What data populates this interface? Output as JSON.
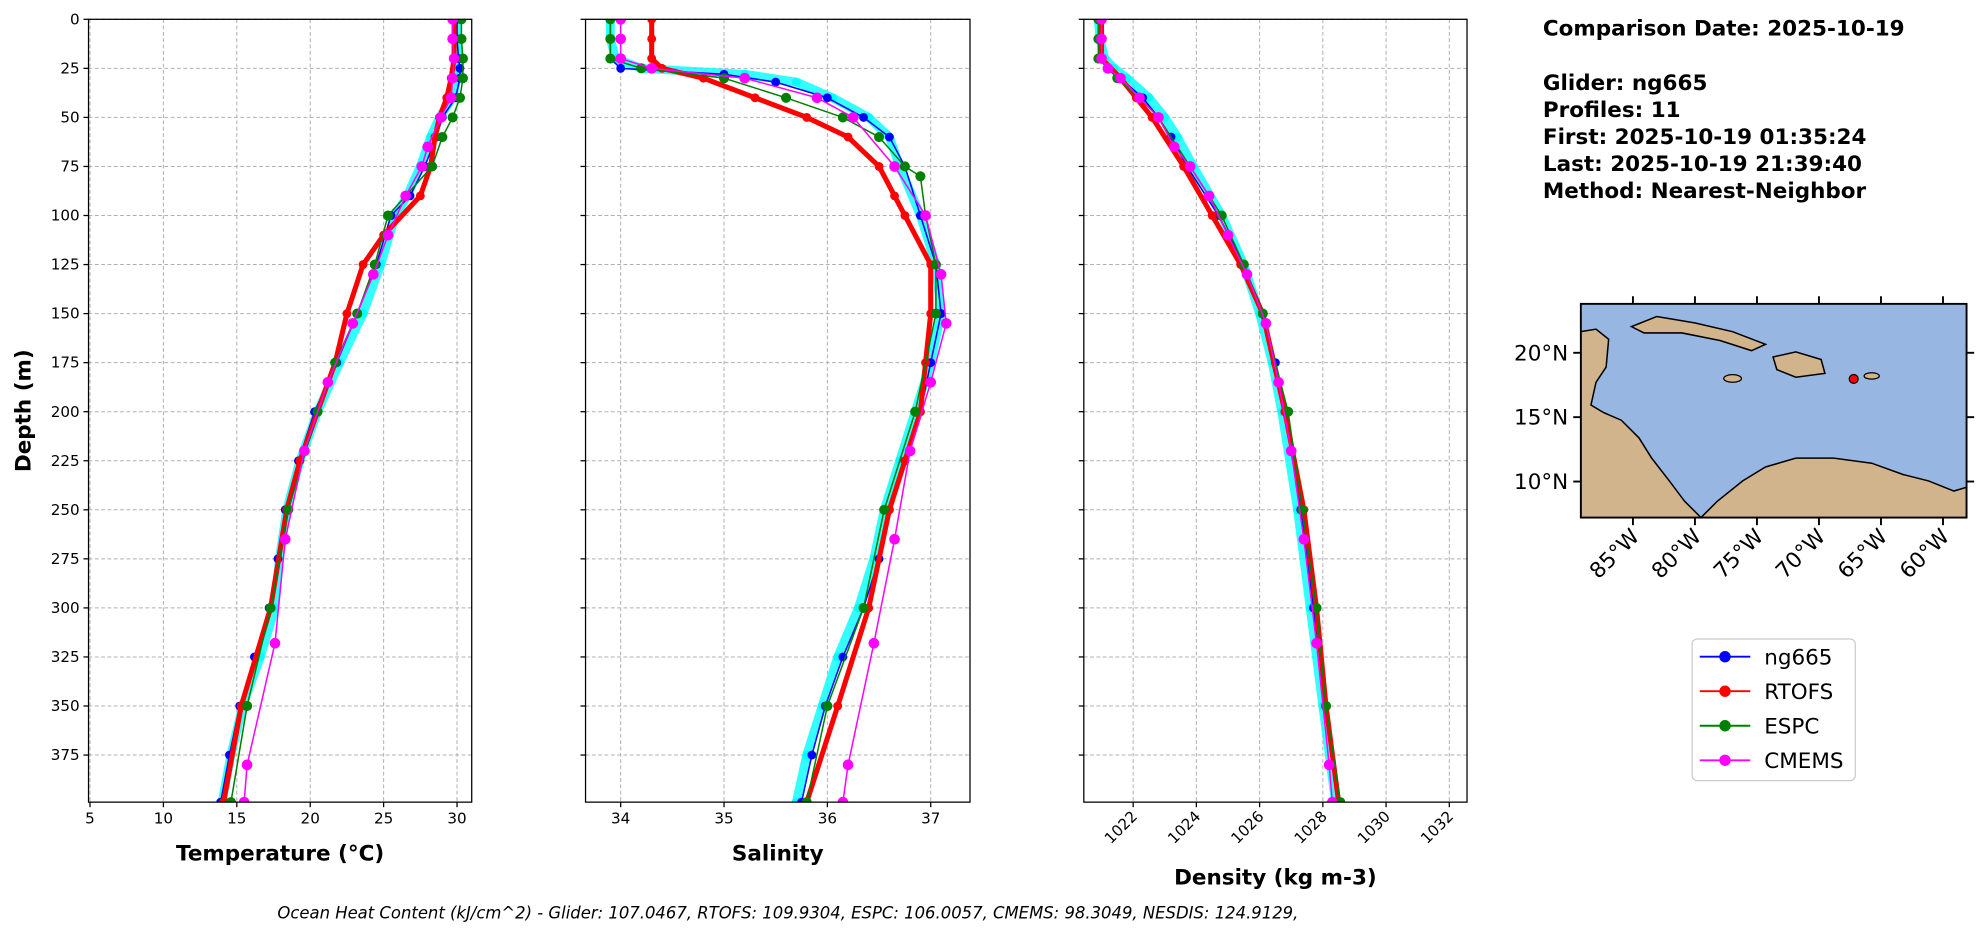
{
  "chart_data": [
    {
      "type": "line",
      "xlabel": "Temperature (°C)",
      "ylabel": "Depth (m)",
      "xlim": [
        4.9,
        31.0
      ],
      "xticks": [
        5,
        10,
        15,
        20,
        25,
        30
      ],
      "ylim": [
        0,
        399
      ],
      "yticks": [
        0,
        25,
        50,
        75,
        100,
        125,
        150,
        175,
        200,
        225,
        250,
        275,
        300,
        325,
        350,
        375
      ],
      "y_inverted": true,
      "grid": true,
      "ytick_labels": true,
      "xtick_rotation": 0,
      "series": [
        {
          "color": "#00ffff",
          "y": [
            0,
            10,
            20,
            25,
            30,
            40,
            50,
            60,
            75,
            90,
            100,
            125,
            150,
            175,
            200,
            225,
            250,
            275,
            300,
            325,
            350,
            375,
            399
          ],
          "x": [
            30.0,
            30.0,
            30.1,
            30.1,
            30.0,
            29.7,
            28.8,
            28.2,
            27.5,
            26.6,
            25.8,
            24.8,
            23.6,
            22.0,
            20.5,
            19.3,
            18.4,
            17.9,
            17.6,
            16.6,
            15.4,
            14.6,
            14.0
          ]
        },
        {
          "name": "ng665",
          "color": "#0000ff",
          "y": [
            0,
            10,
            20,
            25,
            30,
            40,
            50,
            60,
            75,
            90,
            100,
            125,
            150,
            175,
            200,
            225,
            250,
            275,
            300,
            325,
            350,
            375,
            399
          ],
          "x": [
            30.0,
            30.0,
            30.1,
            30.2,
            30.2,
            29.9,
            29.0,
            28.6,
            27.8,
            26.8,
            25.5,
            24.5,
            23.2,
            21.8,
            20.3,
            19.2,
            18.3,
            17.8,
            17.2,
            16.2,
            15.2,
            14.5,
            13.9
          ]
        },
        {
          "name": "RTOFS",
          "color": "#ff0000",
          "y": [
            0,
            10,
            20,
            30,
            40,
            50,
            60,
            75,
            90,
            110,
            125,
            150,
            175,
            200,
            225,
            250,
            300,
            350,
            399
          ],
          "x": [
            29.8,
            29.8,
            29.8,
            29.6,
            29.3,
            28.8,
            28.5,
            28.2,
            27.5,
            25.0,
            23.6,
            22.5,
            21.7,
            20.5,
            19.3,
            18.4,
            17.3,
            15.3,
            14.1
          ]
        },
        {
          "name": "ESPC",
          "color": "#008000",
          "y": [
            0,
            10,
            20,
            30,
            40,
            50,
            60,
            75,
            90,
            100,
            125,
            150,
            175,
            200,
            250,
            300,
            350,
            399
          ],
          "x": [
            30.3,
            30.3,
            30.4,
            30.4,
            30.2,
            29.7,
            29.0,
            28.3,
            26.5,
            25.3,
            24.4,
            23.2,
            21.7,
            20.5,
            18.5,
            17.3,
            15.7,
            14.6
          ]
        },
        {
          "name": "CMEMS",
          "color": "#ff00ff",
          "y": [
            0,
            10,
            20,
            30,
            40,
            50,
            65,
            75,
            90,
            110,
            130,
            155,
            185,
            220,
            265,
            318,
            380,
            399
          ],
          "x": [
            29.7,
            29.7,
            29.8,
            29.7,
            29.6,
            28.9,
            28.0,
            27.6,
            26.5,
            25.3,
            24.3,
            22.9,
            21.2,
            19.6,
            18.3,
            17.6,
            15.7,
            15.5
          ]
        }
      ]
    },
    {
      "type": "line",
      "xlabel": "Salinity",
      "xlim": [
        33.66,
        37.38
      ],
      "xticks": [
        34,
        35,
        36,
        37
      ],
      "ylim": [
        0,
        399
      ],
      "yticks": [
        0,
        25,
        50,
        75,
        100,
        125,
        150,
        175,
        200,
        225,
        250,
        275,
        300,
        325,
        350,
        375
      ],
      "y_inverted": true,
      "grid": true,
      "ytick_labels": false,
      "xtick_rotation": 0,
      "series": [
        {
          "color": "#00ffff",
          "y": [
            0,
            10,
            20,
            25,
            28,
            32,
            40,
            50,
            60,
            75,
            100,
            125,
            150,
            175,
            200,
            225,
            250,
            275,
            300,
            325,
            350,
            375,
            399
          ],
          "x": [
            33.9,
            33.9,
            33.95,
            34.2,
            35.2,
            35.7,
            36.05,
            36.4,
            36.6,
            36.7,
            36.9,
            37.05,
            37.1,
            37.0,
            36.85,
            36.7,
            36.55,
            36.45,
            36.3,
            36.1,
            35.95,
            35.8,
            35.7
          ]
        },
        {
          "name": "ng665",
          "color": "#0000ff",
          "y": [
            0,
            10,
            20,
            25,
            28,
            32,
            40,
            50,
            60,
            75,
            100,
            125,
            150,
            175,
            200,
            225,
            250,
            275,
            300,
            325,
            350,
            375,
            399
          ],
          "x": [
            33.9,
            33.9,
            33.9,
            34.0,
            35.0,
            35.5,
            36.0,
            36.35,
            36.6,
            36.75,
            36.9,
            37.05,
            37.1,
            37.0,
            36.9,
            36.75,
            36.6,
            36.5,
            36.35,
            36.15,
            35.98,
            35.85,
            35.75
          ]
        },
        {
          "name": "RTOFS",
          "color": "#ff0000",
          "y": [
            0,
            10,
            20,
            25,
            30,
            40,
            50,
            60,
            75,
            90,
            100,
            125,
            150,
            175,
            200,
            225,
            250,
            300,
            350,
            399
          ],
          "x": [
            34.3,
            34.3,
            34.3,
            34.4,
            34.8,
            35.3,
            35.8,
            36.2,
            36.5,
            36.65,
            36.75,
            37.0,
            37.0,
            36.95,
            36.9,
            36.75,
            36.6,
            36.4,
            36.1,
            35.8
          ]
        },
        {
          "name": "ESPC",
          "color": "#008000",
          "y": [
            0,
            10,
            20,
            25,
            30,
            40,
            50,
            60,
            75,
            80,
            100,
            125,
            150,
            200,
            250,
            300,
            350,
            399
          ],
          "x": [
            33.9,
            33.9,
            33.9,
            34.2,
            35.0,
            35.6,
            36.15,
            36.5,
            36.75,
            36.9,
            36.95,
            37.05,
            37.05,
            36.85,
            36.55,
            36.35,
            36.0,
            35.8
          ]
        },
        {
          "name": "CMEMS",
          "color": "#ff00ff",
          "y": [
            0,
            10,
            20,
            25,
            30,
            40,
            50,
            75,
            100,
            130,
            155,
            185,
            220,
            265,
            318,
            380,
            399
          ],
          "x": [
            34.0,
            34.0,
            34.0,
            34.3,
            35.2,
            35.9,
            36.25,
            36.65,
            36.95,
            37.1,
            37.15,
            37.0,
            36.8,
            36.65,
            36.45,
            36.2,
            36.15
          ]
        }
      ]
    },
    {
      "type": "line",
      "xlabel": "Density (kg m-3)",
      "xlim": [
        1020.44,
        1032.56
      ],
      "xticks": [
        1022,
        1024,
        1026,
        1028,
        1030,
        1032
      ],
      "ylim": [
        0,
        399
      ],
      "yticks": [
        0,
        25,
        50,
        75,
        100,
        125,
        150,
        175,
        200,
        225,
        250,
        275,
        300,
        325,
        350,
        375
      ],
      "y_inverted": true,
      "grid": true,
      "ytick_labels": false,
      "xtick_rotation": 45,
      "series": [
        {
          "color": "#00ffff",
          "y": [
            0,
            10,
            20,
            25,
            30,
            40,
            50,
            60,
            75,
            100,
            125,
            150,
            175,
            200,
            250,
            300,
            350,
            399
          ],
          "x": [
            1020.9,
            1020.95,
            1021.1,
            1021.4,
            1021.8,
            1022.5,
            1023.0,
            1023.4,
            1023.9,
            1024.8,
            1025.5,
            1026.0,
            1026.4,
            1026.7,
            1027.2,
            1027.6,
            1028.0,
            1028.4
          ]
        },
        {
          "name": "ng665",
          "color": "#0000ff",
          "y": [
            0,
            10,
            20,
            25,
            30,
            40,
            50,
            60,
            75,
            100,
            125,
            150,
            175,
            200,
            250,
            300,
            350,
            399
          ],
          "x": [
            1020.9,
            1020.9,
            1021.0,
            1021.2,
            1021.6,
            1022.3,
            1022.8,
            1023.2,
            1023.7,
            1024.7,
            1025.5,
            1026.1,
            1026.5,
            1026.8,
            1027.3,
            1027.7,
            1028.1,
            1028.5
          ]
        },
        {
          "name": "RTOFS",
          "color": "#ff0000",
          "y": [
            0,
            10,
            20,
            30,
            40,
            50,
            75,
            100,
            125,
            150,
            200,
            250,
            300,
            350,
            399
          ],
          "x": [
            1021.0,
            1021.0,
            1021.0,
            1021.6,
            1022.1,
            1022.6,
            1023.6,
            1024.5,
            1025.4,
            1026.1,
            1026.8,
            1027.4,
            1027.8,
            1028.1,
            1028.5
          ]
        },
        {
          "name": "ESPC",
          "color": "#008000",
          "y": [
            0,
            10,
            20,
            30,
            40,
            50,
            75,
            100,
            125,
            150,
            200,
            250,
            300,
            350,
            399
          ],
          "x": [
            1020.9,
            1020.9,
            1020.9,
            1021.5,
            1022.2,
            1022.8,
            1023.8,
            1024.8,
            1025.5,
            1026.1,
            1026.9,
            1027.35,
            1027.8,
            1028.1,
            1028.55
          ]
        },
        {
          "name": "CMEMS",
          "color": "#ff00ff",
          "y": [
            0,
            10,
            20,
            25,
            30,
            40,
            50,
            65,
            75,
            90,
            110,
            130,
            155,
            185,
            220,
            265,
            318,
            380,
            399
          ],
          "x": [
            1021.0,
            1021.0,
            1021.0,
            1021.2,
            1021.6,
            1022.2,
            1022.8,
            1023.3,
            1023.8,
            1024.4,
            1025.0,
            1025.6,
            1026.2,
            1026.6,
            1027.0,
            1027.4,
            1027.8,
            1028.2,
            1028.3
          ]
        }
      ]
    }
  ],
  "info": {
    "title": "Comparison Date: 2025-10-19",
    "lines": [
      "Glider: ng665",
      "Profiles: 11",
      "First: 2025-10-19 01:35:24",
      "Last: 2025-10-19 21:39:40",
      "Method: Nearest-Neighbor"
    ]
  },
  "map": {
    "xlim": [
      -89.2,
      -58.1
    ],
    "ylim": [
      7.2,
      23.8
    ],
    "xticks": [
      {
        "value": -85,
        "label": "85°W"
      },
      {
        "value": -80,
        "label": "80°W"
      },
      {
        "value": -75,
        "label": "75°W"
      },
      {
        "value": -70,
        "label": "70°W"
      },
      {
        "value": -65,
        "label": "65°W"
      },
      {
        "value": -60,
        "label": "60°W"
      }
    ],
    "yticks": [
      {
        "value": 20,
        "label": "20°N"
      },
      {
        "value": 15,
        "label": "15°N"
      },
      {
        "value": 10,
        "label": "10°N"
      }
    ],
    "glider_position": [
      -67.2,
      17.97
    ],
    "marker_color": "#ff0000"
  },
  "footer": "Ocean Heat Content (kJ/cm^2) - Glider: 107.0467,  RTOFS: 109.9304,  ESPC: 106.0057,  CMEMS: 98.3049,  NESDIS: 124.9129,"
}
